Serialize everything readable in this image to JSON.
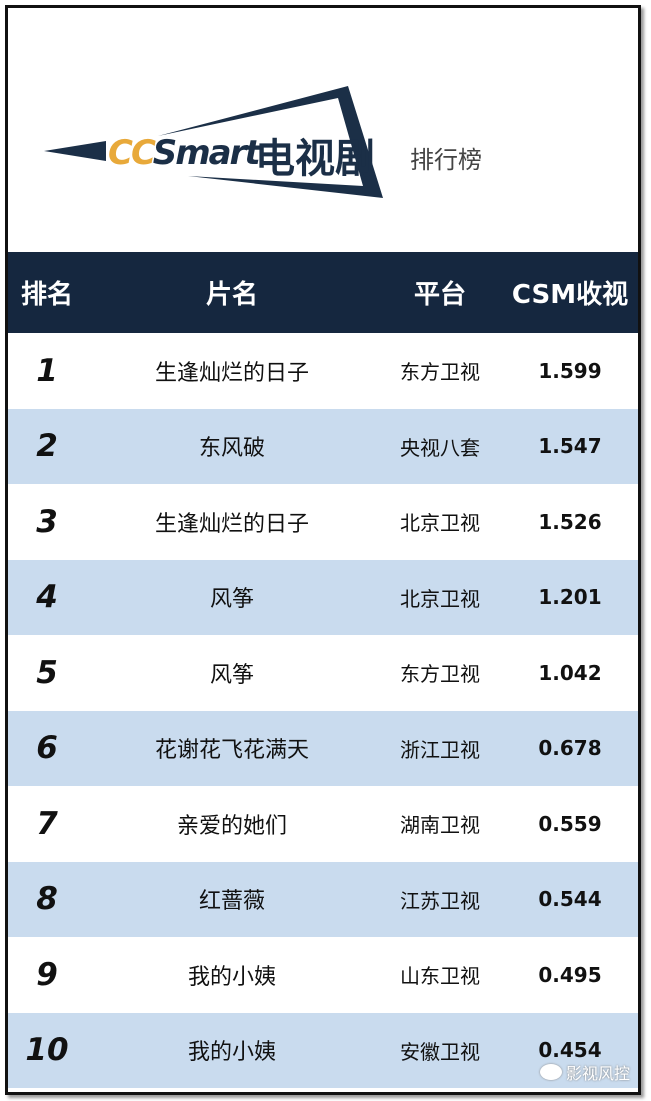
{
  "logo": {
    "brand_yellow": "CC",
    "brand_dark": "Smart",
    "title": "电视剧",
    "subtitle": "排行榜",
    "colors": {
      "yellow": "#e8a93a",
      "navy": "#1b2f47"
    }
  },
  "table": {
    "headers": [
      "排名",
      "片名",
      "平台",
      "CSM收视"
    ],
    "rows": [
      {
        "rank": "1",
        "title": "生逢灿烂的日子",
        "platform": "东方卫视",
        "rating": "1.599"
      },
      {
        "rank": "2",
        "title": "东风破",
        "platform": "央视八套",
        "rating": "1.547"
      },
      {
        "rank": "3",
        "title": "生逢灿烂的日子",
        "platform": "北京卫视",
        "rating": "1.526"
      },
      {
        "rank": "4",
        "title": "风筝",
        "platform": "北京卫视",
        "rating": "1.201"
      },
      {
        "rank": "5",
        "title": "风筝",
        "platform": "东方卫视",
        "rating": "1.042"
      },
      {
        "rank": "6",
        "title": "花谢花飞花满天",
        "platform": "浙江卫视",
        "rating": "0.678"
      },
      {
        "rank": "7",
        "title": "亲爱的她们",
        "platform": "湖南卫视",
        "rating": "0.559"
      },
      {
        "rank": "8",
        "title": "红蔷薇",
        "platform": "江苏卫视",
        "rating": "0.544"
      },
      {
        "rank": "9",
        "title": "我的小姨",
        "platform": "山东卫视",
        "rating": "0.495"
      },
      {
        "rank": "10",
        "title": "我的小姨",
        "platform": "安徽卫视",
        "rating": "0.454"
      }
    ],
    "colors": {
      "header_bg": "#15273f",
      "alt_row": "#c9dbee"
    }
  },
  "watermark": {
    "text": "影视风控",
    "icon": "wechat-icon"
  },
  "chart_data": {
    "type": "table",
    "columns": [
      "排名",
      "片名",
      "平台",
      "CSM收视"
    ],
    "rows": [
      [
        1,
        "生逢灿烂的日子",
        "东方卫视",
        1.599
      ],
      [
        2,
        "东风破",
        "央视八套",
        1.547
      ],
      [
        3,
        "生逢灿烂的日子",
        "北京卫视",
        1.526
      ],
      [
        4,
        "风筝",
        "北京卫视",
        1.201
      ],
      [
        5,
        "风筝",
        "东方卫视",
        1.042
      ],
      [
        6,
        "花谢花飞花满天",
        "浙江卫视",
        0.678
      ],
      [
        7,
        "亲爱的她们",
        "湖南卫视",
        0.559
      ],
      [
        8,
        "红蔷薇",
        "江苏卫视",
        0.544
      ],
      [
        9,
        "我的小姨",
        "山东卫视",
        0.495
      ],
      [
        10,
        "我的小姨",
        "安徽卫视",
        0.454
      ]
    ]
  }
}
